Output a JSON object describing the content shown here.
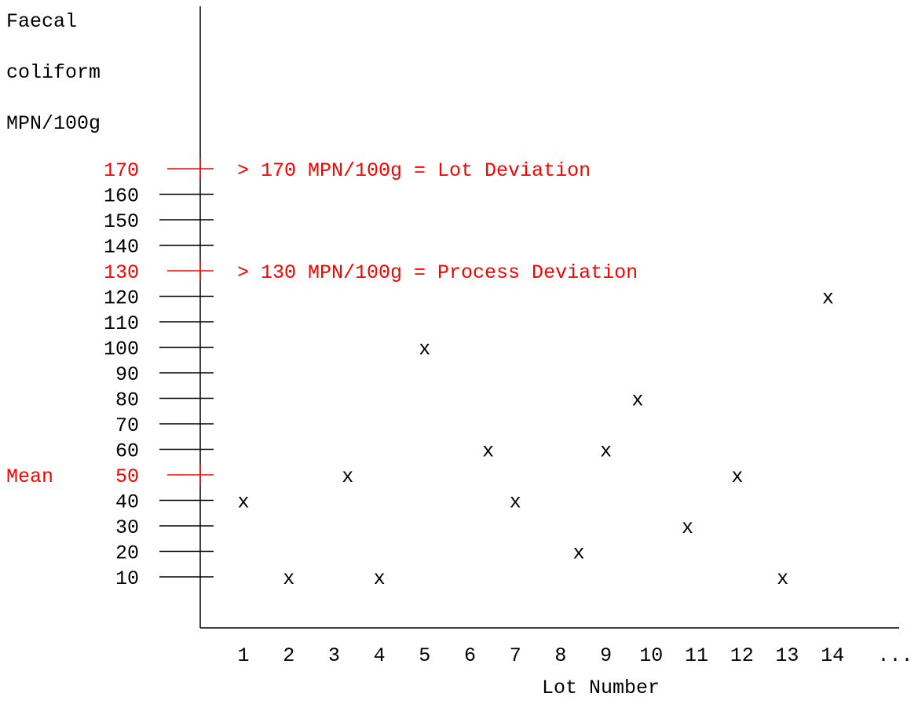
{
  "chart_data": {
    "type": "scatter",
    "title": "",
    "ylabel_lines": [
      "Faecal",
      "coliform",
      "MPN/100g"
    ],
    "xlabel": "Lot Number",
    "yticks": [
      10,
      20,
      30,
      40,
      50,
      60,
      70,
      80,
      90,
      100,
      110,
      120,
      130,
      140,
      150,
      160,
      170
    ],
    "xticks": [
      "1",
      "2",
      "3",
      "4",
      "5",
      "6",
      "7",
      "8",
      "9",
      "10",
      "11",
      "12",
      "13",
      "14"
    ],
    "x_continuation": "...",
    "marker": "x",
    "points": [
      {
        "x": 1,
        "y": 40
      },
      {
        "x": 2,
        "y": 10
      },
      {
        "x": 3.3,
        "y": 50
      },
      {
        "x": 4,
        "y": 10
      },
      {
        "x": 5,
        "y": 100
      },
      {
        "x": 6.4,
        "y": 60
      },
      {
        "x": 7,
        "y": 40
      },
      {
        "x": 8.4,
        "y": 20
      },
      {
        "x": 9,
        "y": 60
      },
      {
        "x": 9.7,
        "y": 80
      },
      {
        "x": 10.8,
        "y": 30
      },
      {
        "x": 11.9,
        "y": 50
      },
      {
        "x": 12.9,
        "y": 10
      },
      {
        "x": 13.9,
        "y": 120
      }
    ],
    "reference_lines": [
      {
        "y": 170,
        "label": "> 170 MPN/100g = Lot Deviation"
      },
      {
        "y": 130,
        "label": "> 130 MPN/100g = Process Deviation"
      },
      {
        "y": 50,
        "label": "Mean"
      }
    ],
    "colors": {
      "axis": "#000000",
      "reference": "#ff0000",
      "marker": "#000000"
    }
  }
}
